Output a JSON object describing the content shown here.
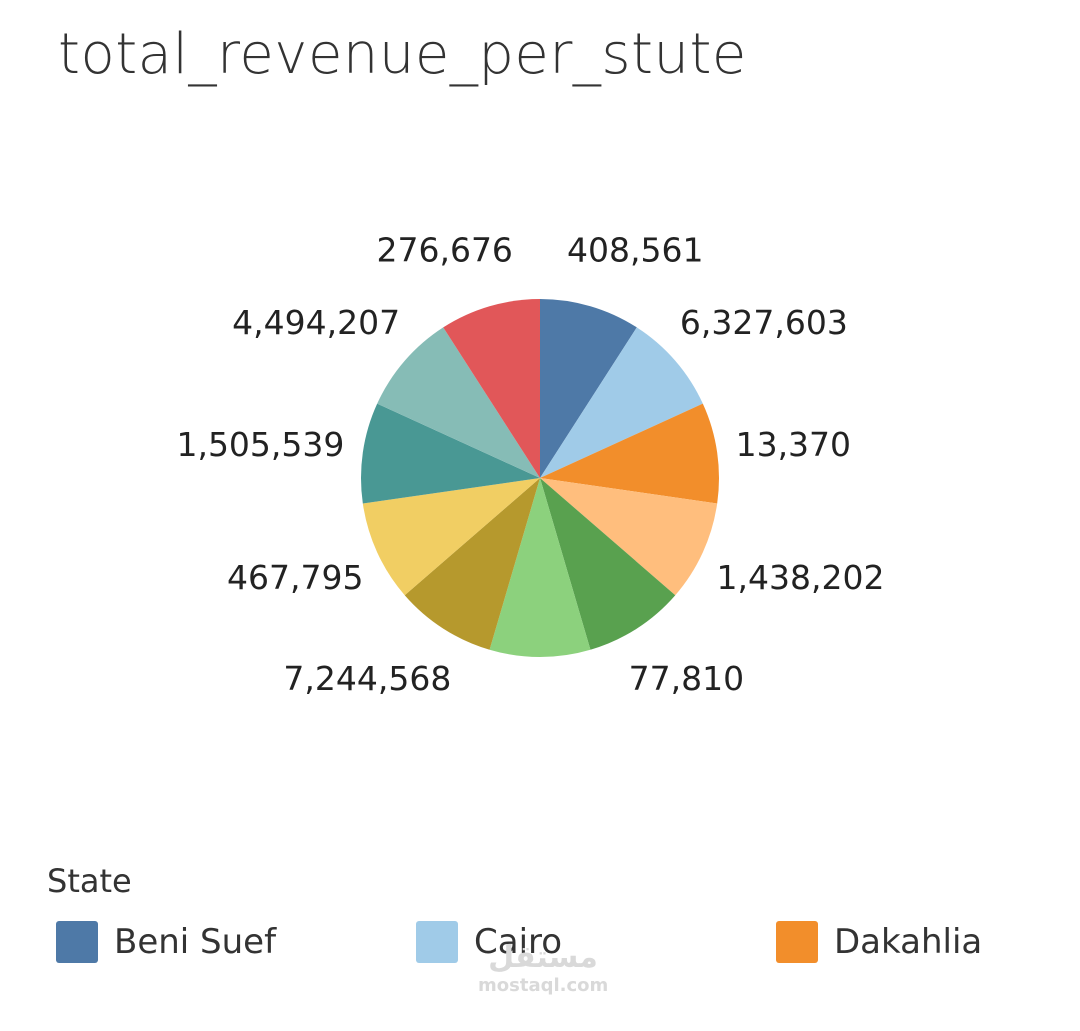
{
  "title": "total_revenue_per_stute",
  "legend": {
    "title": "State",
    "items": [
      {
        "label": "Beni Suef",
        "color": "#4e79a7"
      },
      {
        "label": "Cairo",
        "color": "#a0cbe8"
      },
      {
        "label": "Dakahlia",
        "color": "#f28e2b"
      }
    ]
  },
  "watermark": {
    "logo_text": "مستقل",
    "site_text": "mostaql.com"
  },
  "chart_data": {
    "type": "pie",
    "title": "total_revenue_per_stute",
    "slices": [
      {
        "label": "408,561",
        "value": 408561,
        "color": "#4e79a7"
      },
      {
        "label": "6,327,603",
        "value": 6327603,
        "color": "#a0cbe8"
      },
      {
        "label": "13,370",
        "value": 13370,
        "color": "#f28e2b"
      },
      {
        "label": "1,438,202",
        "value": 1438202,
        "color": "#ffbe7d"
      },
      {
        "label": "77,810",
        "value": 77810,
        "color": "#59a14f"
      },
      {
        "label": "",
        "value": null,
        "color": "#8cd17d"
      },
      {
        "label": "7,244,568",
        "value": 7244568,
        "color": "#b6992d"
      },
      {
        "label": "467,795",
        "value": 467795,
        "color": "#f1ce63"
      },
      {
        "label": "1,505,539",
        "value": 1505539,
        "color": "#499894"
      },
      {
        "label": "4,494,207",
        "value": 4494207,
        "color": "#86bcb6"
      },
      {
        "label": "276,676",
        "value": 276676,
        "color": "#e15759"
      }
    ],
    "slice_sizing": "equal",
    "start_angle_deg": 0,
    "direction": "clockwise",
    "legend_placement": "bottom"
  }
}
